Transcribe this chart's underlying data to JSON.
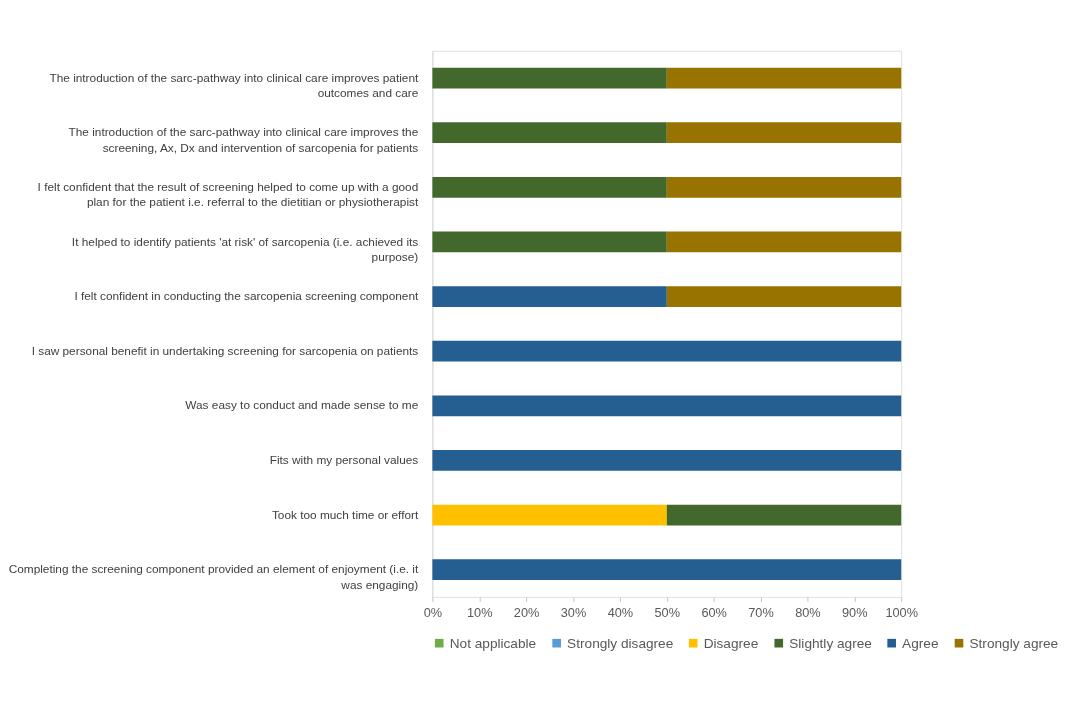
{
  "chart_data": {
    "type": "bar",
    "orientation": "horizontal",
    "stacked": true,
    "categories": [
      "The introduction of the sarc-pathway into clinical care improves patient outcomes and care",
      "The introduction of the sarc-pathway into clinical care improves the screening, Ax, Dx and intervention of sarcopenia for patients",
      "I felt confident that the result of screening helped to come up with a good plan for the patient i.e. referral to the dietitian or physiotherapist",
      "It helped to identify patients 'at risk' of sarcopenia (i.e. achieved its purpose)",
      "I felt confident in conducting the sarcopenia screening component",
      "I saw personal benefit in undertaking screening for sarcopenia on patients",
      "Was easy to conduct and made sense to me",
      "Fits with my personal values",
      "Took too much time or effort",
      "Completing the screening component provided an element of enjoyment (i.e. it was engaging)"
    ],
    "series": [
      {
        "name": "Not applicable",
        "color": "#70ad47",
        "values": [
          0,
          0,
          0,
          0,
          0,
          0,
          0,
          0,
          0,
          0
        ]
      },
      {
        "name": "Strongly disagree",
        "color": "#5b9bd5",
        "values": [
          0,
          0,
          0,
          0,
          0,
          0,
          0,
          0,
          0,
          0
        ]
      },
      {
        "name": "Disagree",
        "color": "#ffc000",
        "values": [
          0,
          0,
          0,
          0,
          0,
          0,
          0,
          0,
          50,
          0
        ]
      },
      {
        "name": "Slightly agree",
        "color": "#43682b",
        "values": [
          50,
          50,
          50,
          50,
          0,
          0,
          0,
          0,
          50,
          0
        ]
      },
      {
        "name": "Agree",
        "color": "#255e91",
        "values": [
          0,
          0,
          0,
          0,
          50,
          100,
          100,
          100,
          0,
          100
        ]
      },
      {
        "name": "Strongly agree",
        "color": "#997300",
        "values": [
          50,
          50,
          50,
          50,
          50,
          0,
          0,
          0,
          0,
          0
        ]
      }
    ],
    "xlim": [
      0,
      100
    ],
    "xticks": [
      {
        "value": 0,
        "label": "0%"
      },
      {
        "value": 10,
        "label": "10%"
      },
      {
        "value": 20,
        "label": "20%"
      },
      {
        "value": 30,
        "label": "30%"
      },
      {
        "value": 40,
        "label": "40%"
      },
      {
        "value": 50,
        "label": "50%"
      },
      {
        "value": 60,
        "label": "60%"
      },
      {
        "value": 70,
        "label": "70%"
      },
      {
        "value": 80,
        "label": "80%"
      },
      {
        "value": 90,
        "label": "90%"
      },
      {
        "value": 100,
        "label": "100%"
      }
    ],
    "grid": false,
    "legend": "bottom"
  }
}
